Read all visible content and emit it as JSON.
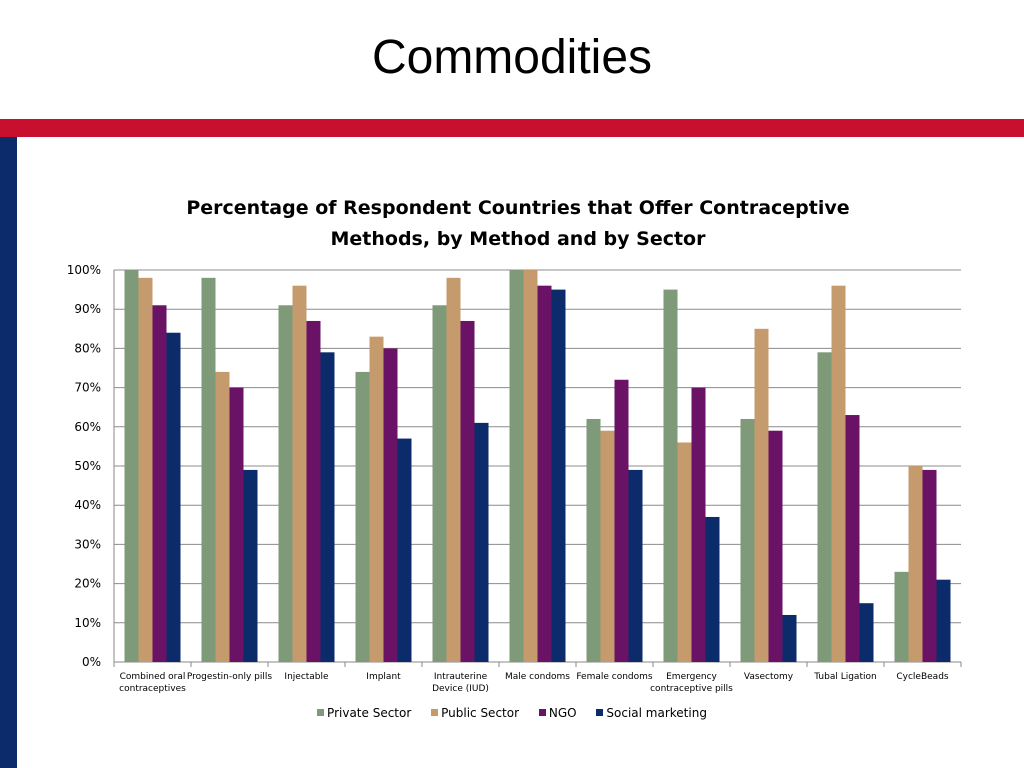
{
  "slide": {
    "title": "Commodities"
  },
  "chart_data": {
    "type": "bar",
    "title": "Percentage of Respondent Countries that Offer Contraceptive Methods, by Method and by Sector",
    "xlabel": "",
    "ylabel": "",
    "ylim": [
      0,
      100
    ],
    "yticks": [
      "0%",
      "10%",
      "20%",
      "30%",
      "40%",
      "50%",
      "60%",
      "70%",
      "80%",
      "90%",
      "100%"
    ],
    "grid": true,
    "legend_position": "bottom",
    "categories": [
      [
        "Combined oral",
        "contraceptives"
      ],
      [
        "Progestin-only pills"
      ],
      [
        "Injectable"
      ],
      [
        "Implant"
      ],
      [
        "Intrauterine",
        "Device (IUD)"
      ],
      [
        "Male condoms"
      ],
      [
        "Female condoms"
      ],
      [
        "Emergency",
        "contraceptive pills"
      ],
      [
        "Vasectomy"
      ],
      [
        "Tubal Ligation"
      ],
      [
        "CycleBeads"
      ]
    ],
    "series": [
      {
        "name": "Private Sector",
        "color": "#7f9a78",
        "values": [
          100,
          98,
          91,
          74,
          91,
          100,
          62,
          95,
          62,
          79,
          23
        ]
      },
      {
        "name": "Public Sector",
        "color": "#c59b6d",
        "values": [
          98,
          74,
          96,
          83,
          98,
          100,
          59,
          56,
          85,
          96,
          50
        ]
      },
      {
        "name": "NGO",
        "color": "#6a1266",
        "values": [
          91,
          70,
          87,
          80,
          87,
          96,
          72,
          70,
          59,
          63,
          49
        ]
      },
      {
        "name": "Social marketing",
        "color": "#0c2b6b",
        "values": [
          84,
          49,
          79,
          57,
          61,
          95,
          49,
          37,
          12,
          15,
          21
        ]
      }
    ]
  }
}
